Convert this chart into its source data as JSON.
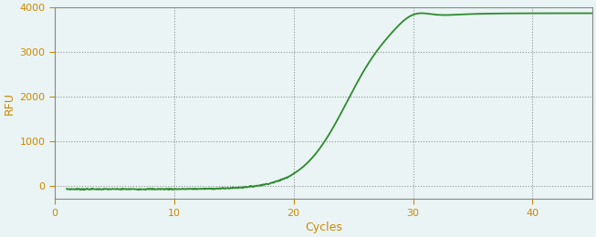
{
  "title": "",
  "xlabel": "Cycles",
  "ylabel": "RFU",
  "xlim": [
    0,
    45
  ],
  "ylim": [
    -300,
    4000
  ],
  "yticks": [
    0,
    1000,
    2000,
    3000,
    4000
  ],
  "xticks": [
    0,
    10,
    20,
    30,
    40
  ],
  "line_color": "#2d8a2d",
  "background_color": "#eaf4f4",
  "grid_color": "#555555",
  "tick_color": "#cc8800",
  "label_color": "#cc8800",
  "x_start": 1,
  "x_end": 45,
  "curve_midpoint": 24.5,
  "curve_max": 3870,
  "curve_steepness": 0.52,
  "kink_x": 30.0,
  "kink_strength": 180,
  "baseline_value": -80
}
